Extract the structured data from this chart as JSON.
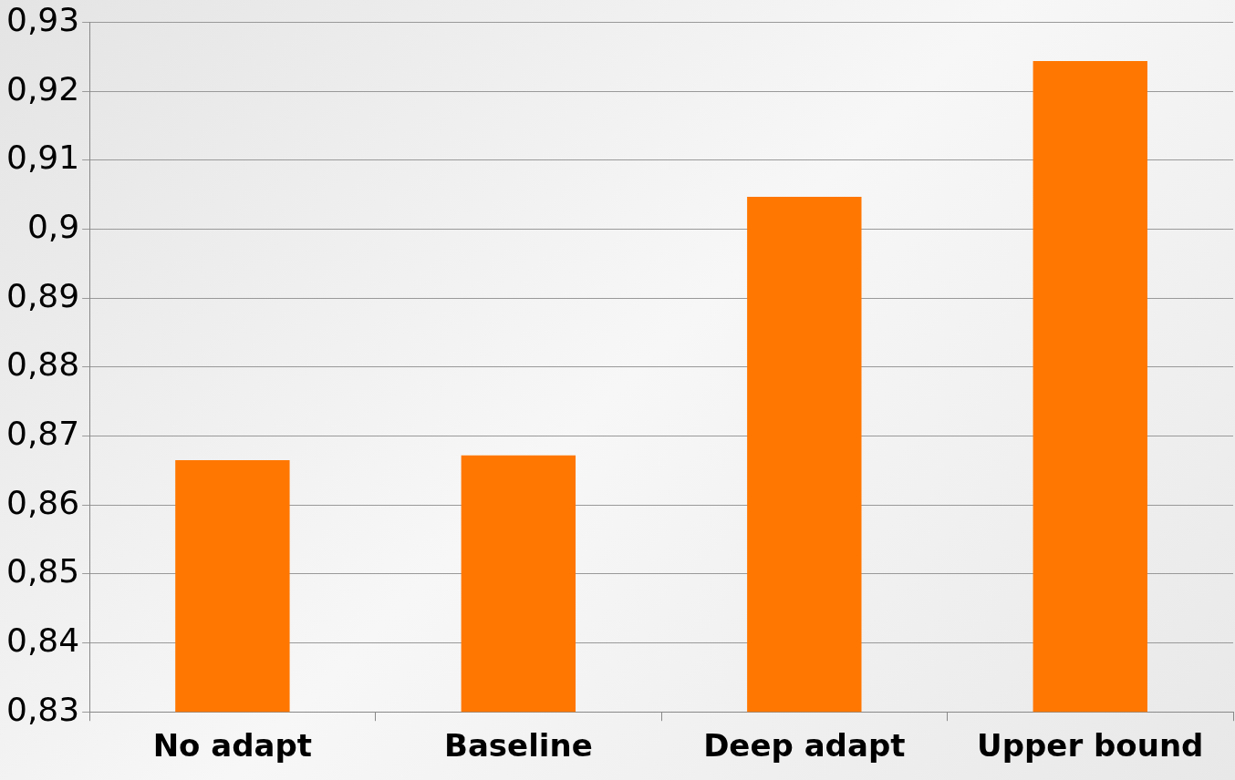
{
  "chart_data": {
    "type": "bar",
    "categories": [
      "No adapt",
      "Baseline",
      "Deep adapt",
      "Upper bound"
    ],
    "values": [
      0.8665,
      0.8672,
      0.9047,
      0.9244
    ],
    "color": "#ff7700",
    "ylim": [
      0.83,
      0.93
    ],
    "yticks": [
      {
        "value": 0.83,
        "label": "0,83"
      },
      {
        "value": 0.84,
        "label": "0,84"
      },
      {
        "value": 0.85,
        "label": "0,85"
      },
      {
        "value": 0.86,
        "label": "0,86"
      },
      {
        "value": 0.87,
        "label": "0,87"
      },
      {
        "value": 0.88,
        "label": "0,88"
      },
      {
        "value": 0.89,
        "label": "0,89"
      },
      {
        "value": 0.9,
        "label": "0,9"
      },
      {
        "value": 0.91,
        "label": "0,91"
      },
      {
        "value": 0.92,
        "label": "0,92"
      },
      {
        "value": 0.93,
        "label": "0,93"
      }
    ],
    "grid": "y"
  }
}
